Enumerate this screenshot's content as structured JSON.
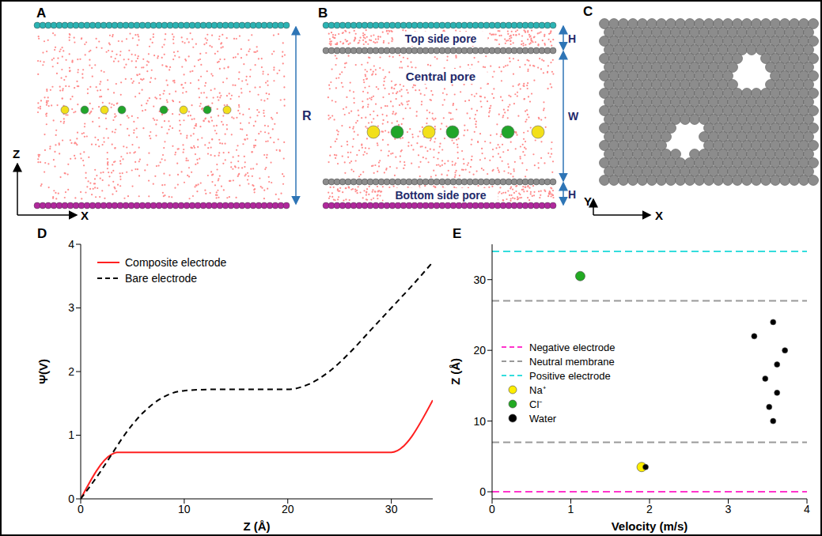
{
  "panels": {
    "A": {
      "label": "A",
      "axes": [
        "Z",
        "X"
      ],
      "dimension": "R"
    },
    "B": {
      "label": "B",
      "regions": [
        "Top side pore",
        "Central pore",
        "Bottom side pore"
      ],
      "dimensions": [
        "H",
        "W",
        "H"
      ]
    },
    "C": {
      "label": "C",
      "axes": [
        "Y",
        "X"
      ]
    }
  },
  "chart_data": [
    {
      "panel": "D",
      "type": "line",
      "x_label": "Z (Å)",
      "y_label": "Ψ(V)",
      "xlim": [
        0,
        34
      ],
      "xticks": [
        0,
        10,
        20,
        30
      ],
      "ylim": [
        0,
        4
      ],
      "yticks": [
        0,
        1,
        2,
        3,
        4
      ],
      "legend": "upper left",
      "series": [
        {
          "name": "Composite electrode",
          "color": "#ff2020",
          "line_style": "solid",
          "x": [
            0,
            3,
            3.5,
            30,
            34
          ],
          "values": [
            0,
            0.7,
            0.73,
            0.73,
            1.55
          ]
        },
        {
          "name": "Bare electrode",
          "color": "#000000",
          "line_style": "dashed",
          "x": [
            0,
            2,
            3,
            4,
            6,
            8,
            10,
            13,
            20,
            22,
            24,
            26,
            28,
            30,
            32,
            34
          ],
          "values": [
            0,
            0.45,
            0.7,
            0.95,
            1.35,
            1.6,
            1.7,
            1.72,
            1.72,
            1.8,
            2.0,
            2.3,
            2.65,
            3.0,
            3.35,
            3.72
          ]
        }
      ]
    },
    {
      "panel": "E",
      "type": "scatter",
      "x_label": "Velocity (m/s)",
      "y_label": "Z (Å)",
      "xlim": [
        0,
        4
      ],
      "xticks": [
        0,
        1,
        2,
        3,
        4
      ],
      "ylim": [
        -1,
        35
      ],
      "yticks": [
        0,
        10,
        20,
        30
      ],
      "legend": "center left",
      "series": [
        {
          "name": "Negative electrode",
          "type": "hline",
          "color": "#ff33cc",
          "line_style": "dashed",
          "values": [
            0
          ]
        },
        {
          "name": "Neutral membrane",
          "type": "hline",
          "color": "#999999",
          "line_style": "dashed",
          "values": [
            7,
            27
          ]
        },
        {
          "name": "Positive electrode",
          "type": "hline",
          "color": "#33dddd",
          "line_style": "dashed",
          "values": [
            34
          ]
        },
        {
          "name": "Na⁺",
          "type": "scatter",
          "color": "#ffee00",
          "x": [
            1.9
          ],
          "values": [
            3.5
          ]
        },
        {
          "name": "Cl⁻",
          "type": "scatter",
          "color": "#22aa22",
          "x": [
            1.12
          ],
          "values": [
            30.5
          ]
        },
        {
          "name": "Water",
          "type": "scatter",
          "color": "#000000",
          "x": [
            1.95,
            3.33,
            3.57,
            3.72,
            3.62,
            3.47,
            3.62,
            3.52,
            3.57
          ],
          "values": [
            3.5,
            22,
            24,
            20,
            18,
            16,
            14,
            12,
            10
          ]
        }
      ]
    }
  ]
}
